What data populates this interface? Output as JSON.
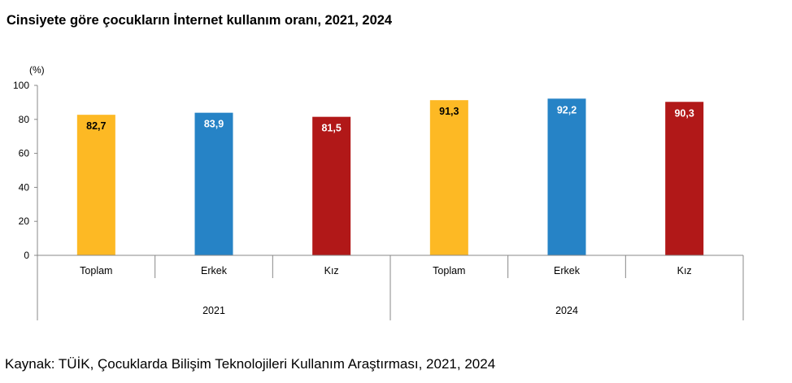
{
  "title": "Cinsiyete göre çocukların İnternet kullanım oranı, 2021, 2024",
  "source": "Kaynak: TÜİK, Çocuklarda Bilişim Teknolojileri Kullanım Araştırması, 2021, 2024",
  "chart_data": {
    "type": "bar",
    "unit_label": "(%)",
    "ylim": [
      0,
      100
    ],
    "yticks": [
      0,
      20,
      40,
      60,
      80,
      100
    ],
    "grid": false,
    "legend": "none",
    "groups": [
      "2021",
      "2024"
    ],
    "categories": [
      "Toplam",
      "Erkek",
      "Kız",
      "Toplam",
      "Erkek",
      "Kız"
    ],
    "group_of_category": [
      0,
      0,
      0,
      1,
      1,
      1
    ],
    "values": [
      82.7,
      83.9,
      81.5,
      91.3,
      92.2,
      90.3
    ],
    "value_labels": [
      "82,7",
      "83,9",
      "81,5",
      "91,3",
      "92,2",
      "90,3"
    ],
    "colors": [
      "#FDB924",
      "#2683C6",
      "#B11818",
      "#FDB924",
      "#2683C6",
      "#B11818"
    ],
    "label_colors": [
      "#000000",
      "#ffffff",
      "#ffffff",
      "#000000",
      "#ffffff",
      "#ffffff"
    ]
  }
}
